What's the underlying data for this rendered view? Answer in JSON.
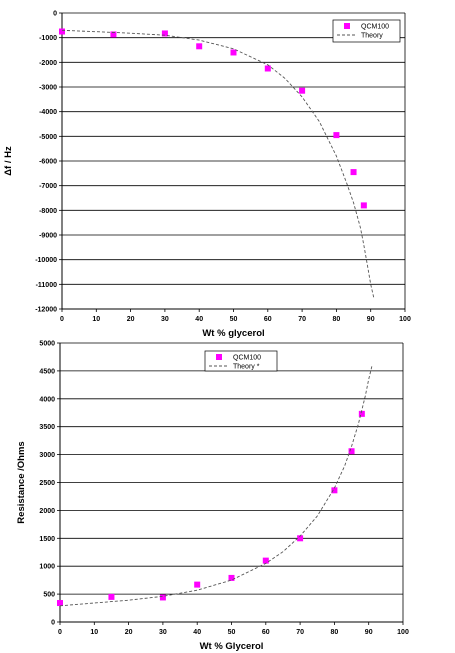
{
  "chart_data": [
    {
      "type": "scatter",
      "title": "",
      "xlabel": "Wt % glycerol",
      "ylabel": "Δf / Hz",
      "xlim": [
        0,
        100
      ],
      "ylim": [
        -12000,
        0
      ],
      "xticks": [
        "0",
        "10",
        "20",
        "30",
        "40",
        "50",
        "60",
        "70",
        "80",
        "90",
        "100"
      ],
      "yticks": [
        "0",
        "-1000",
        "-2000",
        "-3000",
        "-4000",
        "-5000",
        "-6000",
        "-7000",
        "-8000",
        "-9000",
        "-10000",
        "-11000",
        "-12000"
      ],
      "grid": "horizontal",
      "legend_position": "top-right",
      "series": [
        {
          "name": "QCM100",
          "kind": "markers",
          "color": "#ff00ff",
          "x": [
            0,
            15,
            30,
            40,
            50,
            60,
            70,
            80,
            85,
            88
          ],
          "y": [
            -750,
            -870,
            -830,
            -1350,
            -1600,
            -2250,
            -3150,
            -4950,
            -6450,
            -7800
          ]
        },
        {
          "name": "Theory",
          "kind": "dashed-line",
          "color": "#555555",
          "x": [
            0,
            10,
            20,
            30,
            40,
            50,
            60,
            65,
            70,
            75,
            80,
            83,
            85,
            87,
            88,
            89,
            90,
            91
          ],
          "y": [
            -700,
            -760,
            -820,
            -900,
            -1100,
            -1450,
            -2100,
            -2650,
            -3400,
            -4400,
            -5800,
            -6900,
            -7700,
            -8700,
            -9400,
            -10200,
            -11000,
            -11600
          ]
        }
      ]
    },
    {
      "type": "scatter",
      "title": "",
      "xlabel": "Wt % Glycerol",
      "ylabel": "Resistance /Ohms",
      "xlim": [
        0,
        100
      ],
      "ylim": [
        0,
        5000
      ],
      "xticks": [
        "0",
        "10",
        "20",
        "30",
        "40",
        "50",
        "60",
        "70",
        "80",
        "90",
        "100"
      ],
      "yticks": [
        "0",
        "500",
        "1000",
        "1500",
        "2000",
        "2500",
        "3000",
        "3500",
        "4000",
        "4500",
        "5000"
      ],
      "grid": "horizontal",
      "legend_position": "top-left",
      "series": [
        {
          "name": "QCM100",
          "kind": "markers",
          "color": "#ff00ff",
          "x": [
            0,
            15,
            30,
            40,
            50,
            60,
            70,
            80,
            85,
            88
          ],
          "y": [
            340,
            450,
            440,
            670,
            790,
            1100,
            1500,
            2360,
            3060,
            3730
          ]
        },
        {
          "name": "Theory *",
          "kind": "dashed-line",
          "color": "#555555",
          "x": [
            0,
            10,
            20,
            30,
            40,
            50,
            60,
            65,
            70,
            75,
            80,
            83,
            85,
            87,
            89,
            90,
            91
          ],
          "y": [
            290,
            340,
            390,
            460,
            570,
            750,
            1050,
            1260,
            1540,
            1900,
            2400,
            2800,
            3150,
            3550,
            4050,
            4350,
            4600
          ]
        }
      ]
    }
  ]
}
